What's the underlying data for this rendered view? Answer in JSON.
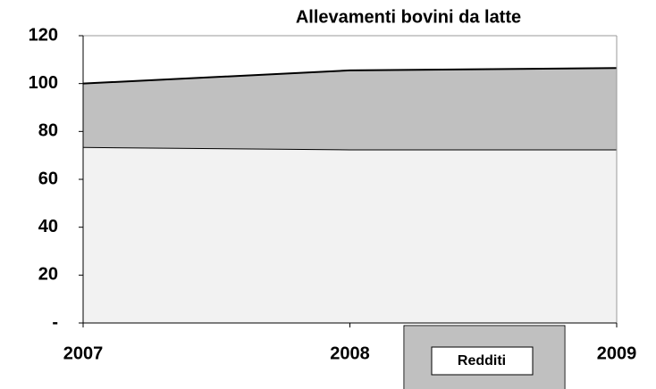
{
  "chart_data": {
    "type": "stacked-area",
    "title": "Allevamenti bovini da latte",
    "categories": [
      "2007",
      "2008",
      "2009"
    ],
    "series": [
      {
        "color": "#f2f2f2",
        "values": [
          73.5,
          72.5,
          72.5
        ]
      },
      {
        "name": "Redditi",
        "color": "#c0c0c0",
        "values": [
          26.5,
          33,
          34
        ]
      }
    ],
    "ylim": [
      0,
      120
    ],
    "yticks": [
      {
        "value": 0,
        "label": "-"
      },
      20,
      40,
      60,
      80,
      100,
      120
    ]
  }
}
